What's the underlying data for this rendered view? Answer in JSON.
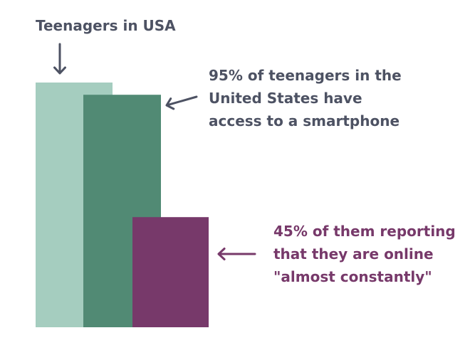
{
  "chart_data": {
    "type": "bar",
    "title": "Teenagers in USA",
    "categories": [
      "",
      "",
      ""
    ],
    "values": [
      100,
      95,
      45
    ],
    "ylim": [
      0,
      100
    ],
    "grid": false,
    "legend": "none",
    "colors": [
      "#a5cdbf",
      "#518a74",
      "#77396a"
    ],
    "annotations": [
      {
        "lines": [
          "95% of teenagers in the",
          "United States have",
          "access to a smartphone"
        ],
        "color": "#4d5263",
        "target_bar": 1
      },
      {
        "lines": [
          "45% of them reporting",
          "that they are online",
          "\"almost constantly\""
        ],
        "color": "#77396a",
        "target_bar": 2
      }
    ],
    "title_color": "#4d5263",
    "arrow_color_title": "#4d5263"
  }
}
